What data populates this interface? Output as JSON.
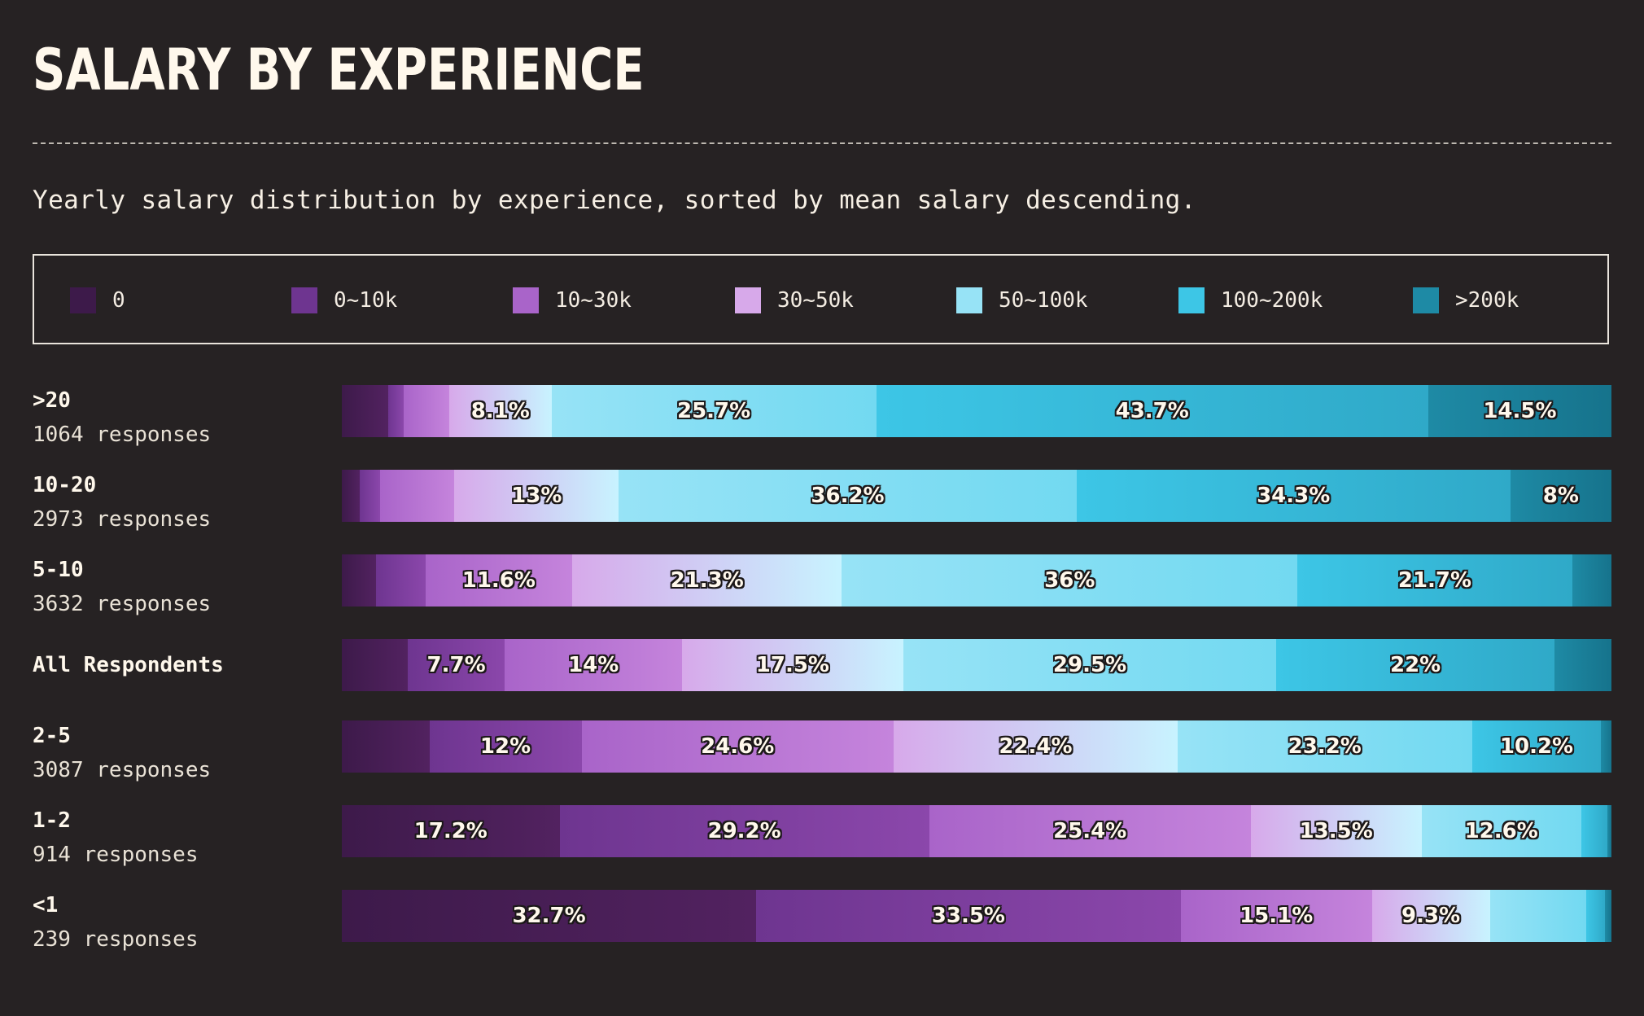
{
  "header": {
    "title": "SALARY BY EXPERIENCE",
    "subtitle": "Yearly salary distribution by experience, sorted by mean salary descending."
  },
  "legend": [
    {
      "label": "0",
      "color": "#3d1a4a"
    },
    {
      "label": "0~10k",
      "color": "#6e3590"
    },
    {
      "label": "10~30k",
      "color": "#a964c9"
    },
    {
      "label": "30~50k",
      "color": "#d7a9ea"
    },
    {
      "label": "50~100k",
      "color": "#97e3f6"
    },
    {
      "label": "100~200k",
      "color": "#3dc6e6"
    },
    {
      "label": ">200k",
      "color": "#1e8aa5"
    }
  ],
  "chart_data": {
    "type": "bar",
    "orientation": "horizontal",
    "stacked": true,
    "normalized": true,
    "unit": "%",
    "categories": [
      ">20",
      "10-20",
      "5-10",
      "All Respondents",
      "2-5",
      "1-2",
      "<1"
    ],
    "responses": [
      "1064 responses",
      "2973 responses",
      "3632 responses",
      "",
      "3087 responses",
      "914 responses",
      "239 responses"
    ],
    "series": [
      {
        "name": "0",
        "values": [
          3.7,
          1.4,
          2.7,
          5.2,
          6.9,
          17.2,
          32.7
        ]
      },
      {
        "name": "0~10k",
        "values": [
          1.2,
          1.6,
          3.9,
          7.7,
          12.0,
          29.2,
          33.5
        ]
      },
      {
        "name": "10~30k",
        "values": [
          3.6,
          5.9,
          11.6,
          14.0,
          24.6,
          25.4,
          15.1
        ]
      },
      {
        "name": "30~50k",
        "values": [
          8.1,
          13.0,
          21.3,
          17.5,
          22.4,
          13.5,
          9.3
        ]
      },
      {
        "name": "50~100k",
        "values": [
          25.7,
          36.2,
          36.0,
          29.5,
          23.2,
          12.6,
          7.6
        ]
      },
      {
        "name": "100~200k",
        "values": [
          43.7,
          34.3,
          21.7,
          22.0,
          10.2,
          2.1,
          1.5
        ]
      },
      {
        "name": ">200k",
        "values": [
          14.5,
          8.0,
          3.1,
          4.5,
          0.8,
          0.3,
          0.5
        ]
      }
    ],
    "labels": [
      [
        "",
        "",
        "",
        "8.1%",
        "25.7%",
        "43.7%",
        "14.5%"
      ],
      [
        "",
        "",
        "",
        "13%",
        "36.2%",
        "34.3%",
        "8%"
      ],
      [
        "",
        "",
        "11.6%",
        "21.3%",
        "36%",
        "21.7%",
        ""
      ],
      [
        "",
        "7.7%",
        "14%",
        "17.5%",
        "29.5%",
        "22%",
        ""
      ],
      [
        "",
        "12%",
        "24.6%",
        "22.4%",
        "23.2%",
        "10.2%",
        ""
      ],
      [
        "17.2%",
        "29.2%",
        "25.4%",
        "13.5%",
        "12.6%",
        "",
        ""
      ],
      [
        "32.7%",
        "33.5%",
        "15.1%",
        "9.3%",
        "",
        "",
        ""
      ]
    ],
    "gradients": [
      [
        "#3d1a4a",
        "#522260"
      ],
      [
        "#6e3590",
        "#8b47ab"
      ],
      [
        "#a964c9",
        "#c584dc"
      ],
      [
        "#d7a9ea",
        "#c8f3ff"
      ],
      [
        "#97e3f6",
        "#72d9f1"
      ],
      [
        "#3dc6e6",
        "#2fa9c8"
      ],
      [
        "#1e8aa5",
        "#16738c"
      ]
    ],
    "xlim": [
      0,
      100
    ]
  }
}
